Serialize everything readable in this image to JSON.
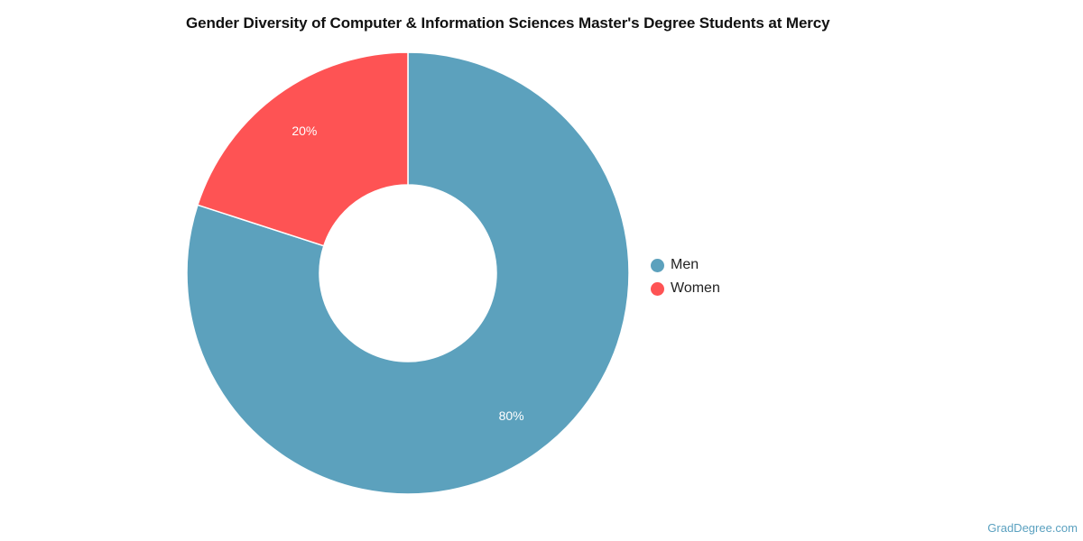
{
  "chart_data": {
    "type": "pie",
    "title": "Gender Diversity of Computer & Information Sciences Master's Degree Students at Mercy",
    "categories": [
      "Men",
      "Women"
    ],
    "values": [
      80,
      20
    ],
    "value_labels": [
      "80%",
      "20%"
    ],
    "colors": [
      "#5ca1bd",
      "#fe5354"
    ],
    "donut": true,
    "legend_position": "right"
  },
  "legend": {
    "items": [
      {
        "label": "Men",
        "color": "#5ca1bd"
      },
      {
        "label": "Women",
        "color": "#fe5354"
      }
    ]
  },
  "watermark": "GradDegree.com"
}
